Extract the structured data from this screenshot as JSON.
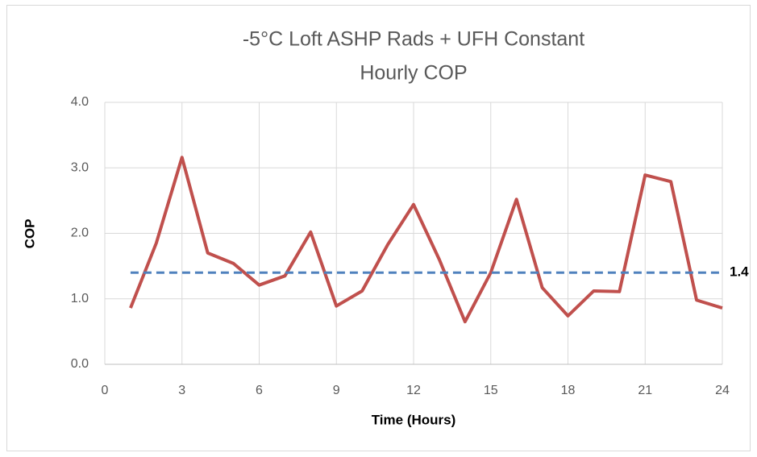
{
  "chart_data": {
    "type": "line",
    "title_lines": [
      "-5°C Loft ASHP Rads + UFH Constant",
      "Hourly COP"
    ],
    "x_label": "Time (Hours)",
    "y_label": "COP",
    "x": [
      1,
      2,
      3,
      4,
      5,
      6,
      7,
      8,
      9,
      10,
      11,
      12,
      13,
      14,
      15,
      16,
      17,
      18,
      19,
      20,
      21,
      22,
      23,
      24
    ],
    "series": [
      {
        "color": "#c0504d",
        "values": [
          0.86,
          1.85,
          3.16,
          1.7,
          1.54,
          1.21,
          1.35,
          2.02,
          0.89,
          1.12,
          1.83,
          2.44,
          1.6,
          0.65,
          1.4,
          2.52,
          1.17,
          0.74,
          1.12,
          1.11,
          2.89,
          2.79,
          0.98,
          0.86
        ]
      }
    ],
    "reference_line": {
      "value": 1.4,
      "color": "#4f81bd",
      "style": "dashed"
    },
    "xlim": [
      0,
      24
    ],
    "xticks": [
      0,
      3,
      6,
      9,
      12,
      15,
      18,
      21,
      24
    ],
    "ylim": [
      0,
      4
    ],
    "yticks": [
      {
        "value": 0,
        "label": "0.0"
      },
      {
        "value": 1,
        "label": "1.0"
      },
      {
        "value": 2,
        "label": "2.0"
      },
      {
        "value": 3,
        "label": "3.0"
      },
      {
        "value": 4,
        "label": "4.0"
      }
    ],
    "grid": true
  }
}
